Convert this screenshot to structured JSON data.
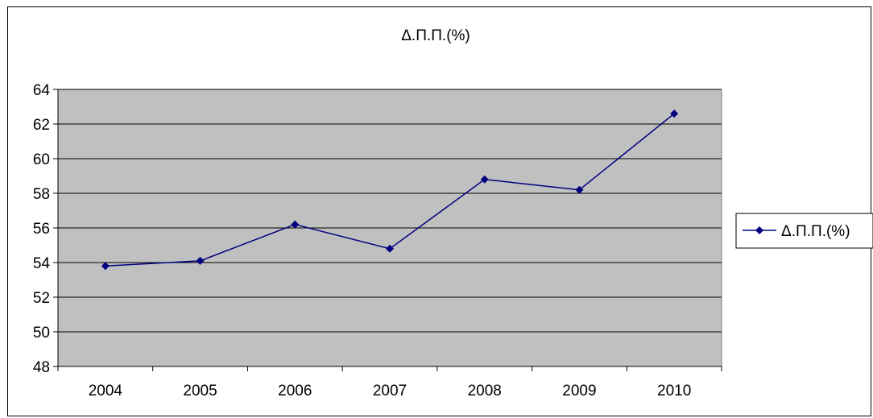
{
  "chart_data": {
    "type": "line",
    "title": "Δ.Π.Π.(%)",
    "xlabel": "",
    "ylabel": "",
    "categories": [
      "2004",
      "2005",
      "2006",
      "2007",
      "2008",
      "2009",
      "2010"
    ],
    "series": [
      {
        "name": "Δ.Π.Π.(%)",
        "values": [
          53.8,
          54.1,
          56.2,
          54.8,
          58.8,
          58.2,
          62.6
        ],
        "color": "#000080"
      }
    ],
    "ylim": [
      48,
      64
    ],
    "ytick_step": 2,
    "grid": true,
    "legend": "right",
    "plot_background": "#c0c0c0"
  }
}
